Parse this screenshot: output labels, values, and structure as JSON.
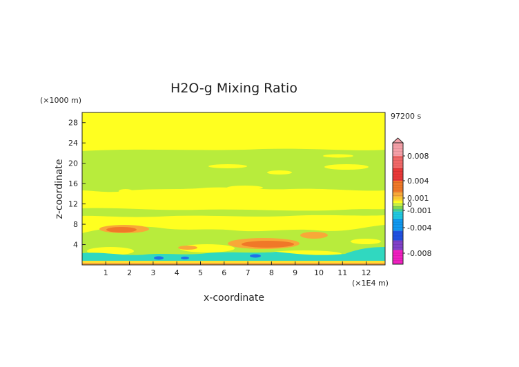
{
  "chart_data": {
    "type": "heatmap",
    "title": "H2O-g Mixing Ratio",
    "xlabel": "x-coordinate",
    "ylabel": "z-coordinate",
    "x_unit": "(×1E4 m)",
    "y_unit": "(×1000 m)",
    "time_label": "97200 s",
    "xlim": [
      0,
      12.8
    ],
    "ylim": [
      0,
      30
    ],
    "x_ticks": [
      "1",
      "2",
      "3",
      "4",
      "5",
      "6",
      "7",
      "8",
      "9",
      "10",
      "11",
      "12"
    ],
    "y_ticks": [
      "4",
      "8",
      "12",
      "16",
      "20",
      "24",
      "28"
    ],
    "colorbar": {
      "tick_labels": [
        "0.008",
        "0.004",
        "0.001",
        "0",
        "-0.001",
        "-0.004",
        "-0.008"
      ],
      "tick_values": [
        0.008,
        0.004,
        0.001,
        0,
        -0.001,
        -0.004,
        -0.008
      ],
      "has_upper_extend_arrow": true
    },
    "background_level": "~0 (yellow)",
    "regions": [
      {
        "name": "upper-green-band",
        "value": -0.0005,
        "x": [
          0,
          12.8
        ],
        "z": [
          12.5,
          22.5
        ]
      },
      {
        "name": "mid-green-band",
        "value": -0.0005,
        "x": [
          0,
          12.8
        ],
        "z": [
          9.5,
          10.8
        ]
      },
      {
        "name": "lower-green-band",
        "value": -0.0005,
        "x": [
          0,
          12.8
        ],
        "z": [
          1.5,
          6.5
        ]
      },
      {
        "name": "orange-blob-left",
        "value": 0.001,
        "x": [
          1.2,
          3.0
        ],
        "z": [
          6.3,
          7.6
        ]
      },
      {
        "name": "orange-blob-center",
        "value": 0.0015,
        "x": [
          5.8,
          9.2
        ],
        "z": [
          4.0,
          5.6
        ]
      },
      {
        "name": "orange-blob-right",
        "value": 0.001,
        "x": [
          9.3,
          10.4
        ],
        "z": [
          6.0,
          7.3
        ]
      },
      {
        "name": "orange-blob-small",
        "value": 0.001,
        "x": [
          3.6,
          4.4
        ],
        "z": [
          3.4,
          4.4
        ]
      },
      {
        "name": "cyan-band-bottom",
        "value": -0.002,
        "x": [
          0,
          12.8
        ],
        "z": [
          1.0,
          3.2
        ]
      },
      {
        "name": "blue-spots",
        "value": -0.004,
        "x": [
          3.2,
          8.2
        ],
        "z": [
          1.2,
          2.0
        ]
      },
      {
        "name": "surface-orange-layer",
        "value": 0.001,
        "x": [
          0,
          12.8
        ],
        "z": [
          0,
          0.5
        ]
      }
    ],
    "colors": {
      "pink_top": "#f5a0a8",
      "red": "#f04848",
      "orange": "#f07828",
      "light_orange": "#f8a838",
      "yellow": "#ffff20",
      "yellow_green": "#c8f040",
      "green": "#a8e838",
      "green2": "#60d060",
      "cyan": "#20d0c8",
      "light_blue": "#20a8f0",
      "blue": "#2050e0",
      "purple": "#8030c8",
      "magenta": "#f020c0"
    }
  }
}
